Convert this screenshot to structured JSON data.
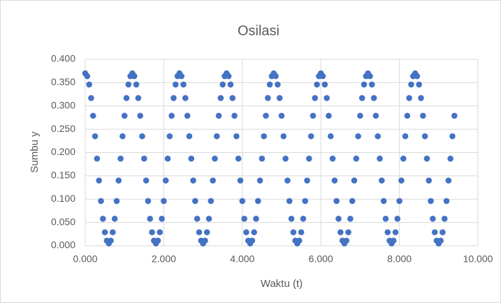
{
  "chart_data": {
    "type": "scatter",
    "title": "Osilasi",
    "x_label": "Waktu (t)",
    "y_label": "Sumbu y",
    "color": "#4472c4",
    "grid": true,
    "xlim": [
      0,
      10
    ],
    "ylim": [
      0,
      0.4
    ],
    "xticks": [
      {
        "value": 0,
        "label": "0.000"
      },
      {
        "value": 2,
        "label": "2.000"
      },
      {
        "value": 4,
        "label": "4.000"
      },
      {
        "value": 6,
        "label": "6.000"
      },
      {
        "value": 8,
        "label": "8.000"
      },
      {
        "value": 10,
        "label": "10.000"
      }
    ],
    "yticks": [
      {
        "value": 0,
        "label": "0.000"
      },
      {
        "value": 0.05,
        "label": "0.050"
      },
      {
        "value": 0.1,
        "label": "0.100"
      },
      {
        "value": 0.15,
        "label": "0.150"
      },
      {
        "value": 0.2,
        "label": "0.200"
      },
      {
        "value": 0.25,
        "label": "0.250"
      },
      {
        "value": 0.3,
        "label": "0.300"
      },
      {
        "value": 0.35,
        "label": "0.350"
      },
      {
        "value": 0.4,
        "label": "0.400"
      }
    ],
    "x": [
      0,
      0.05,
      0.1,
      0.15,
      0.2,
      0.25,
      0.3,
      0.35,
      0.4,
      0.45,
      0.5,
      0.55,
      0.6,
      0.65,
      0.7,
      0.75,
      0.8,
      0.85,
      0.9,
      0.95,
      1,
      1.05,
      1.1,
      1.15,
      1.2,
      1.25,
      1.3,
      1.35,
      1.4,
      1.45,
      1.5,
      1.55,
      1.6,
      1.65,
      1.7,
      1.75,
      1.8,
      1.85,
      1.9,
      1.95,
      2,
      2.05,
      2.1,
      2.15,
      2.2,
      2.25,
      2.3,
      2.35,
      2.4,
      2.45,
      2.5,
      2.55,
      2.6,
      2.65,
      2.7,
      2.75,
      2.8,
      2.85,
      2.9,
      2.95,
      3,
      3.05,
      3.1,
      3.15,
      3.2,
      3.25,
      3.3,
      3.35,
      3.4,
      3.45,
      3.5,
      3.55,
      3.6,
      3.65,
      3.7,
      3.75,
      3.8,
      3.85,
      3.9,
      3.95,
      4,
      4.05,
      4.1,
      4.15,
      4.2,
      4.25,
      4.3,
      4.35,
      4.4,
      4.45,
      4.5,
      4.55,
      4.6,
      4.65,
      4.7,
      4.75,
      4.8,
      4.85,
      4.9,
      4.95,
      5,
      5.05,
      5.1,
      5.15,
      5.2,
      5.25,
      5.3,
      5.35,
      5.4,
      5.45,
      5.5,
      5.55,
      5.6,
      5.65,
      5.7,
      5.75,
      5.8,
      5.85,
      5.9,
      5.95,
      6,
      6.05,
      6.1,
      6.15,
      6.2,
      6.25,
      6.3,
      6.35,
      6.4,
      6.45,
      6.5,
      6.55,
      6.6,
      6.65,
      6.7,
      6.75,
      6.8,
      6.85,
      6.9,
      6.95,
      7,
      7.05,
      7.1,
      7.15,
      7.2,
      7.25,
      7.3,
      7.35,
      7.4,
      7.45,
      7.5,
      7.55,
      7.6,
      7.65,
      7.7,
      7.75,
      7.8,
      7.85,
      7.9,
      7.95,
      8,
      8.05,
      8.1,
      8.15,
      8.2,
      8.25,
      8.3,
      8.35,
      8.4,
      8.45,
      8.5,
      8.55,
      8.6,
      8.65,
      8.7,
      8.75,
      8.8,
      8.85,
      8.9,
      8.95,
      9,
      9.05,
      9.1,
      9.15,
      9.2,
      9.25,
      9.3,
      9.35,
      9.4
    ],
    "values": [
      0.37,
      0.364,
      0.346,
      0.317,
      0.279,
      0.235,
      0.187,
      0.14,
      0.096,
      0.058,
      0.029,
      0.011,
      0.005,
      0.011,
      0.029,
      0.058,
      0.096,
      0.14,
      0.187,
      0.235,
      0.279,
      0.317,
      0.346,
      0.364,
      0.37,
      0.364,
      0.346,
      0.317,
      0.279,
      0.235,
      0.187,
      0.14,
      0.096,
      0.058,
      0.029,
      0.011,
      0.005,
      0.011,
      0.029,
      0.058,
      0.096,
      0.14,
      0.187,
      0.235,
      0.279,
      0.317,
      0.346,
      0.364,
      0.37,
      0.364,
      0.346,
      0.317,
      0.279,
      0.235,
      0.187,
      0.14,
      0.096,
      0.058,
      0.029,
      0.011,
      0.005,
      0.011,
      0.029,
      0.058,
      0.096,
      0.14,
      0.187,
      0.235,
      0.279,
      0.317,
      0.346,
      0.364,
      0.37,
      0.364,
      0.346,
      0.317,
      0.279,
      0.235,
      0.187,
      0.14,
      0.096,
      0.058,
      0.029,
      0.011,
      0.005,
      0.011,
      0.029,
      0.058,
      0.096,
      0.14,
      0.187,
      0.235,
      0.279,
      0.317,
      0.346,
      0.364,
      0.37,
      0.364,
      0.346,
      0.317,
      0.279,
      0.235,
      0.187,
      0.14,
      0.096,
      0.058,
      0.029,
      0.011,
      0.005,
      0.011,
      0.029,
      0.058,
      0.096,
      0.14,
      0.187,
      0.235,
      0.279,
      0.317,
      0.346,
      0.364,
      0.37,
      0.364,
      0.346,
      0.317,
      0.279,
      0.235,
      0.187,
      0.14,
      0.096,
      0.058,
      0.029,
      0.011,
      0.005,
      0.011,
      0.029,
      0.058,
      0.096,
      0.14,
      0.187,
      0.235,
      0.279,
      0.317,
      0.346,
      0.364,
      0.37,
      0.364,
      0.346,
      0.317,
      0.279,
      0.235,
      0.187,
      0.14,
      0.096,
      0.058,
      0.029,
      0.011,
      0.005,
      0.011,
      0.029,
      0.058,
      0.096,
      0.14,
      0.187,
      0.235,
      0.279,
      0.317,
      0.346,
      0.364,
      0.37,
      0.364,
      0.346,
      0.317,
      0.279,
      0.235,
      0.187,
      0.14,
      0.096,
      0.058,
      0.029,
      0.011,
      0.005,
      0.011,
      0.029,
      0.058,
      0.096,
      0.14,
      0.187,
      0.235,
      0.279
    ]
  }
}
